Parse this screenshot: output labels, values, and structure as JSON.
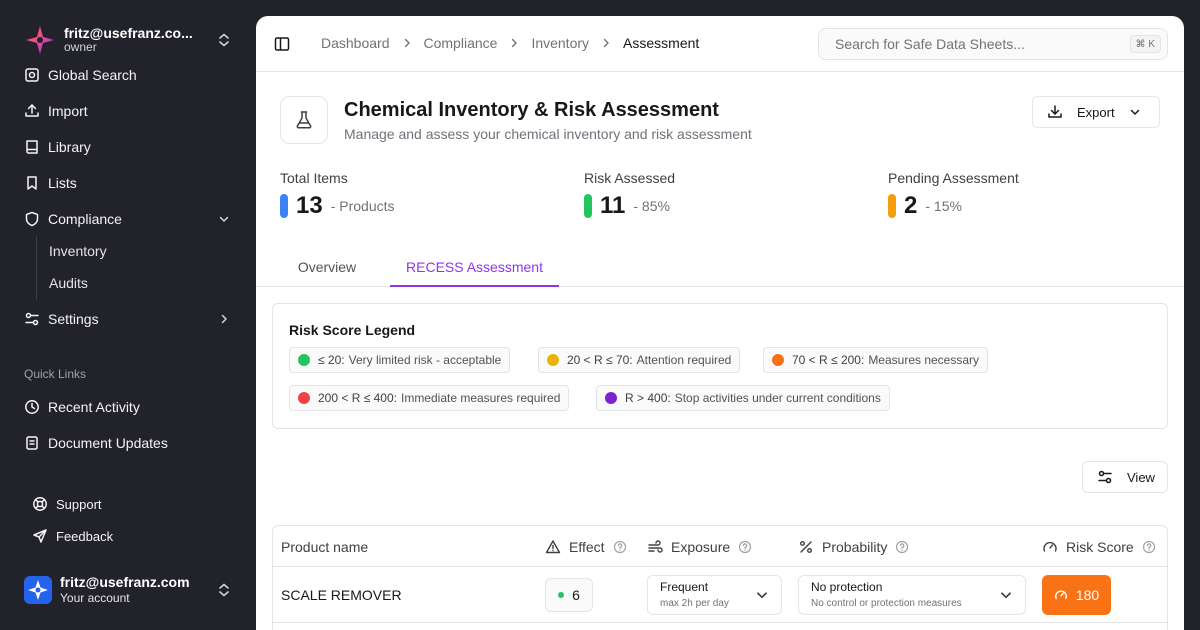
{
  "workspace": {
    "name": "fritz@usefranz.co...",
    "role": "owner"
  },
  "nav": {
    "items": [
      {
        "label": "Global Search",
        "icon": "search-icon"
      },
      {
        "label": "Import",
        "icon": "upload-icon"
      },
      {
        "label": "Library",
        "icon": "book-icon"
      },
      {
        "label": "Lists",
        "icon": "bookmark-icon"
      },
      {
        "label": "Compliance",
        "icon": "shield-icon"
      },
      {
        "label": "Settings",
        "icon": "sliders-icon"
      }
    ],
    "compliance_sub": [
      "Inventory",
      "Audits"
    ],
    "quick_links_label": "Quick Links",
    "quick_links": [
      {
        "label": "Recent Activity",
        "icon": "clock-icon"
      },
      {
        "label": "Document Updates",
        "icon": "file-icon"
      }
    ]
  },
  "footer": {
    "support": "Support",
    "feedback": "Feedback"
  },
  "user": {
    "name": "fritz@usefranz.com",
    "sub": "Your account"
  },
  "breadcrumb": [
    "Dashboard",
    "Compliance",
    "Inventory",
    "Assessment"
  ],
  "search": {
    "placeholder": "Search for Safe Data Sheets...",
    "shortcut": "⌘ K"
  },
  "page": {
    "title": "Chemical Inventory & Risk Assessment",
    "subtitle": "Manage and assess your chemical inventory and risk assessment",
    "export_label": "Export"
  },
  "stats": [
    {
      "label": "Total Items",
      "value": "13",
      "sub": "- Products",
      "color": "#3b82f6"
    },
    {
      "label": "Risk Assessed",
      "value": "11",
      "sub": "- 85%",
      "color": "#22c55e"
    },
    {
      "label": "Pending Assessment",
      "value": "2",
      "sub": "- 15%",
      "color": "#f59e0b"
    }
  ],
  "tabs": [
    "Overview",
    "RECESS Assessment"
  ],
  "legend": {
    "title": "Risk Score Legend",
    "items": [
      {
        "range": "≤ 20:",
        "text": "Very limited risk - acceptable",
        "color": "#22c55e"
      },
      {
        "range": "20 < R ≤ 70:",
        "text": "Attention required",
        "color": "#eab308"
      },
      {
        "range": "70 < R ≤ 200:",
        "text": "Measures necessary",
        "color": "#f97316"
      },
      {
        "range": "200 < R ≤ 400:",
        "text": "Immediate measures required",
        "color": "#ef4444"
      },
      {
        "range": "R > 400:",
        "text": "Stop activities under current conditions",
        "color": "#7e22ce"
      }
    ]
  },
  "view_label": "View",
  "table": {
    "columns": [
      "Product name",
      "Effect",
      "Exposure",
      "Probability",
      "Risk Score"
    ],
    "rows": [
      {
        "name": "SCALE REMOVER",
        "effect": "6",
        "exposure": {
          "value": "Frequent",
          "detail": "max 2h per day"
        },
        "probability": {
          "value": "No protection",
          "detail": "No control or protection measures"
        },
        "score": "180",
        "score_color": "#f97316"
      }
    ]
  }
}
